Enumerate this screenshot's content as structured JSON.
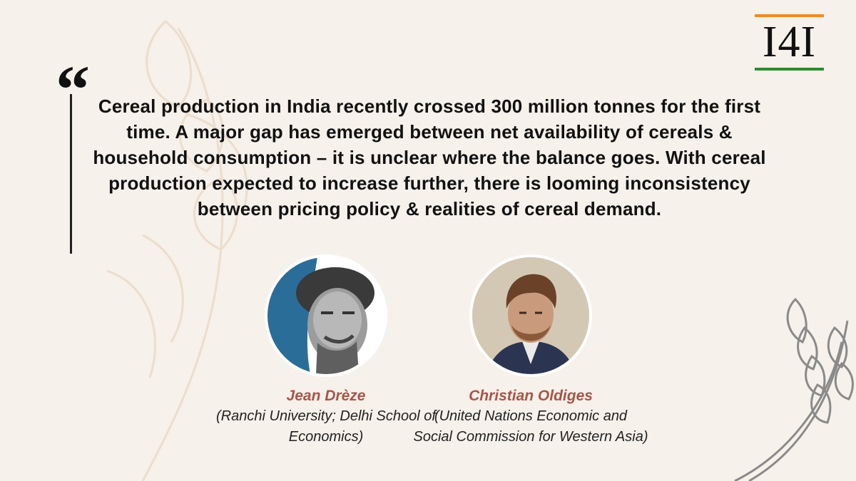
{
  "logo": {
    "text": "I4I",
    "accent_top": "#f08a24",
    "accent_bottom": "#2f8a2f"
  },
  "quote": {
    "mark": "“",
    "text": "Cereal production in India recently crossed 300 million tonnes for the first time. A major gap has emerged between net availability of cereals & household consumption – it is unclear where the balance goes. With cereal production expected to increase further, there is looming inconsistency between pricing policy & realities of cereal demand."
  },
  "speakers": [
    {
      "name": "Jean Drèze",
      "affiliation": "(Ranchi University; Delhi School of Economics)"
    },
    {
      "name": "Christian Oldiges",
      "affiliation": "(United Nations Economic and Social Commission for Western Asia)"
    }
  ],
  "colors": {
    "background": "#f6f1ea",
    "name": "#a7554a",
    "text": "#111111"
  }
}
